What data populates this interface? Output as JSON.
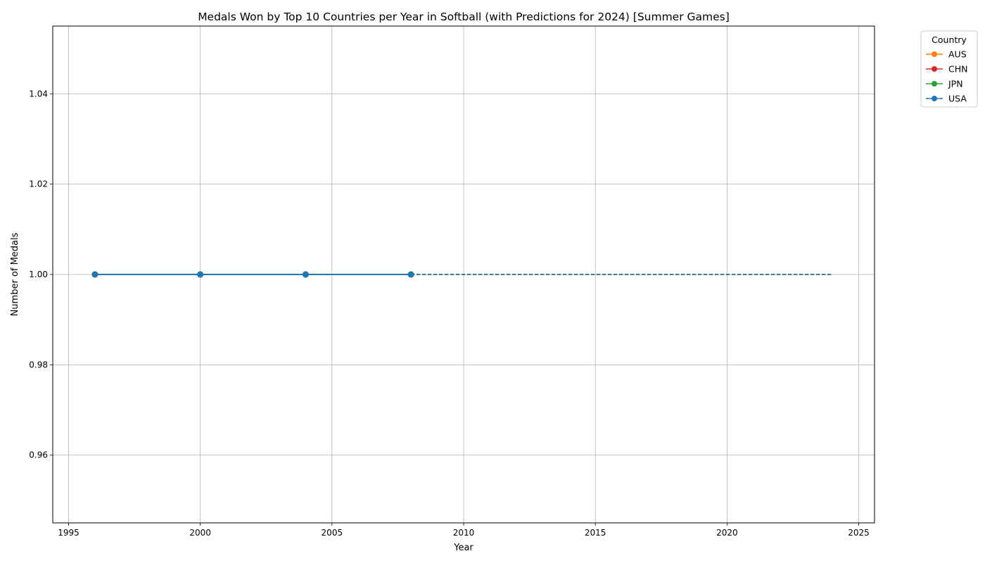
{
  "chart_data": {
    "type": "line",
    "title": "Medals Won by Top 10 Countries per Year in Softball (with Predictions for 2024) [Summer Games]",
    "xlabel": "Year",
    "ylabel": "Number of Medals",
    "xlim": [
      1994.4,
      2025.6
    ],
    "ylim": [
      0.945,
      1.055
    ],
    "xticks": [
      1995,
      2000,
      2005,
      2010,
      2015,
      2020,
      2025
    ],
    "yticks": [
      0.96,
      0.98,
      1.0,
      1.02,
      1.04
    ],
    "ytick_labels": [
      "0.96",
      "0.98",
      "1.00",
      "1.02",
      "1.04"
    ],
    "grid": true,
    "legend": {
      "title": "Country",
      "placement": "upper-right-outside"
    },
    "series": [
      {
        "name": "AUS",
        "color": "#ff7f0e",
        "x": [
          1996,
          2000,
          2004,
          2008
        ],
        "y": [
          1,
          1,
          1,
          1
        ],
        "prediction": {
          "x": [
            2008,
            2024
          ],
          "y": [
            1,
            1
          ]
        }
      },
      {
        "name": "CHN",
        "color": "#d62728",
        "x": [
          1996,
          2000,
          2004,
          2008
        ],
        "y": [
          1,
          1,
          1,
          1
        ],
        "prediction": {
          "x": [
            2008,
            2024
          ],
          "y": [
            1,
            1
          ]
        }
      },
      {
        "name": "JPN",
        "color": "#2ca02c",
        "x": [
          1996,
          2000,
          2004,
          2008
        ],
        "y": [
          1,
          1,
          1,
          1
        ],
        "prediction": {
          "x": [
            2008,
            2024
          ],
          "y": [
            1,
            1
          ]
        }
      },
      {
        "name": "USA",
        "color": "#1f77b4",
        "x": [
          1996,
          2000,
          2004,
          2008
        ],
        "y": [
          1,
          1,
          1,
          1
        ],
        "prediction": {
          "x": [
            2008,
            2024
          ],
          "y": [
            1,
            1
          ]
        }
      }
    ]
  }
}
